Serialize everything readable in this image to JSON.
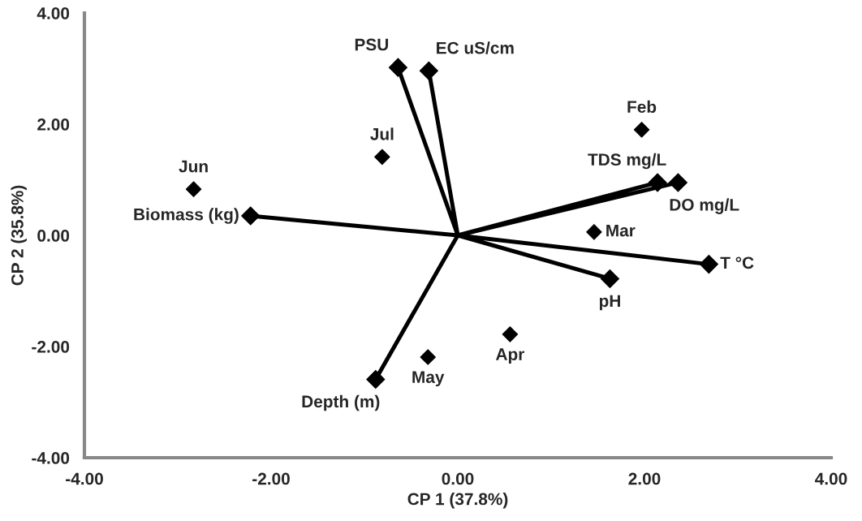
{
  "chart_data": {
    "type": "scatter",
    "xlabel": "CP 1 (37.8%)",
    "ylabel": "CP 2 (35.8%)",
    "xlim": [
      -4,
      4
    ],
    "ylim": [
      -4,
      4
    ],
    "xticks": [
      {
        "value": -4,
        "label": "-4.00"
      },
      {
        "value": -2,
        "label": "-2.00"
      },
      {
        "value": 0,
        "label": "0.00"
      },
      {
        "value": 2,
        "label": "2.00"
      },
      {
        "value": 4,
        "label": "4.00"
      }
    ],
    "yticks": [
      {
        "value": -4,
        "label": "-4.00"
      },
      {
        "value": -2,
        "label": "-2.00"
      },
      {
        "value": 0,
        "label": "0.00"
      },
      {
        "value": 2,
        "label": "2.00"
      },
      {
        "value": 4,
        "label": "4.00"
      }
    ],
    "grid": false,
    "legend": false,
    "marker": "diamond",
    "series": [
      {
        "color": "#000000",
        "x": [
          -2.83,
          -0.81,
          1.97,
          1.46,
          0.56,
          -0.32
        ],
        "values": [
          0.83,
          1.41,
          1.9,
          0.06,
          -1.78,
          -2.19
        ]
      },
      {
        "type": "line",
        "color": "#000000",
        "x": [
          0,
          -0.64,
          null,
          0,
          -0.31,
          null,
          0,
          -2.22,
          null,
          0,
          2.14,
          null,
          0,
          2.36,
          null,
          0,
          2.69,
          null,
          0,
          1.63,
          null,
          0,
          -0.88
        ],
        "values": [
          0,
          3.02,
          null,
          0,
          2.96,
          null,
          0,
          0.35,
          null,
          0,
          0.95,
          null,
          0,
          0.95,
          null,
          0,
          -0.52,
          null,
          0,
          -0.78,
          null,
          0,
          -2.59
        ]
      }
    ],
    "annotations": [
      {
        "text": "Jun",
        "x": -2.83,
        "y": 0.83
      },
      {
        "text": "Jul",
        "x": -0.81,
        "y": 1.41
      },
      {
        "text": "Feb",
        "x": 1.97,
        "y": 1.9
      },
      {
        "text": "Mar",
        "x": 1.46,
        "y": 0.06
      },
      {
        "text": "Apr",
        "x": 0.56,
        "y": -1.78
      },
      {
        "text": "May",
        "x": -0.32,
        "y": -2.19
      },
      {
        "text": "PSU",
        "x": -0.64,
        "y": 3.02
      },
      {
        "text": "EC uS/cm",
        "x": -0.31,
        "y": 2.96
      },
      {
        "text": "Biomass (kg)",
        "x": -2.22,
        "y": 0.35
      },
      {
        "text": "TDS mg/L",
        "x": 2.14,
        "y": 0.95
      },
      {
        "text": "DO mg/L",
        "x": 2.36,
        "y": 0.95
      },
      {
        "text": "T °C",
        "x": 2.69,
        "y": -0.52
      },
      {
        "text": "pH",
        "x": 1.63,
        "y": -0.78
      },
      {
        "text": "Depth (m)",
        "x": -0.88,
        "y": -2.59
      }
    ]
  }
}
